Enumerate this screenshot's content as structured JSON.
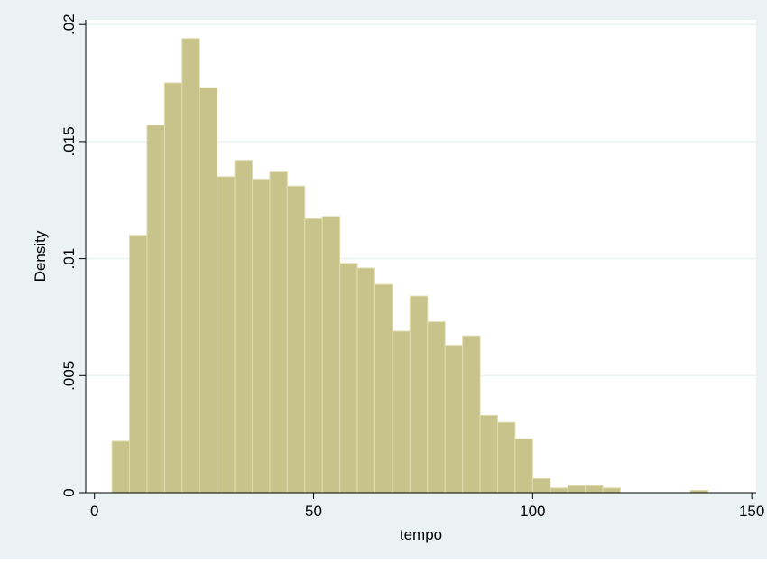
{
  "colors": {
    "outer_background": "#eaf2f3",
    "plot_background": "#ffffff",
    "gridline": "#eaf2f3",
    "bar_fill": "#c8c38a",
    "bar_edge": "#e0dcb0",
    "axis": "#000000"
  },
  "chart_data": {
    "type": "bar",
    "subtype": "histogram",
    "title": "",
    "xlabel": "tempo",
    "ylabel": "Density",
    "xlim": [
      -2,
      151
    ],
    "ylim": [
      0,
      0.0202
    ],
    "grid": true,
    "legend": "none",
    "x_ticks": [
      {
        "value": 0,
        "label": "0"
      },
      {
        "value": 50,
        "label": "50"
      },
      {
        "value": 100,
        "label": "100"
      },
      {
        "value": 150,
        "label": "150"
      }
    ],
    "y_ticks": [
      {
        "value": 0,
        "label": "0"
      },
      {
        "value": 0.005,
        "label": ".005"
      },
      {
        "value": 0.01,
        "label": ".01"
      },
      {
        "value": 0.015,
        "label": ".015"
      },
      {
        "value": 0.02,
        "label": ".02"
      }
    ],
    "bin_start": 4,
    "bin_width": 4,
    "values": [
      0.0022,
      0.011,
      0.0157,
      0.0175,
      0.0194,
      0.0173,
      0.0135,
      0.0142,
      0.0134,
      0.0137,
      0.0131,
      0.0117,
      0.0118,
      0.0098,
      0.0096,
      0.0089,
      0.0069,
      0.0084,
      0.0073,
      0.0063,
      0.0067,
      0.0033,
      0.003,
      0.0023,
      0.0006,
      0.0002,
      0.0003,
      0.0003,
      0.0002,
      0,
      0,
      0,
      0,
      0.0001
    ]
  }
}
